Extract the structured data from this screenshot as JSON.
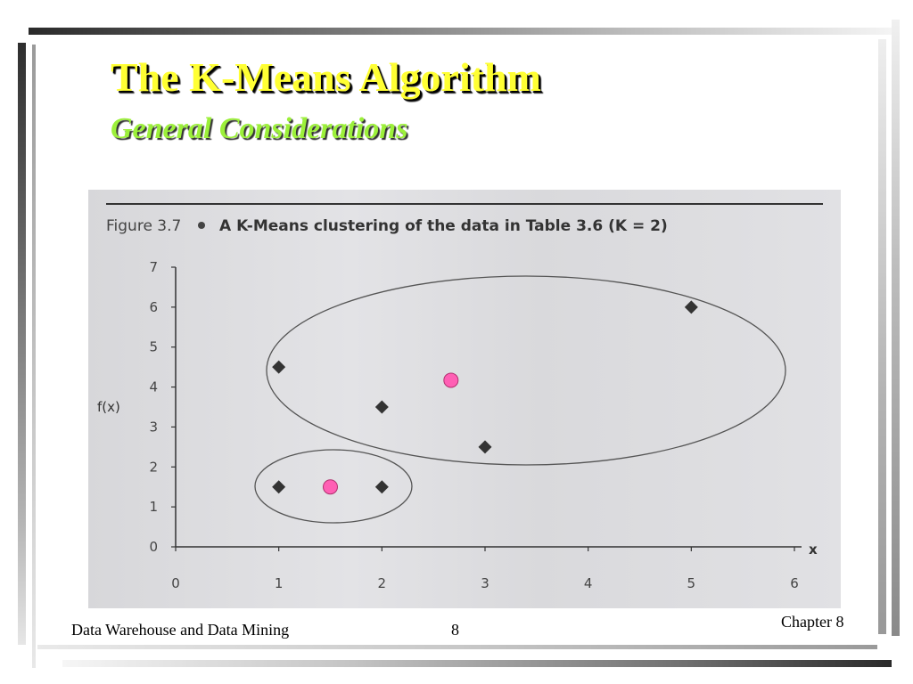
{
  "slide": {
    "title": "The K-Means Algorithm",
    "subtitle": "General Considerations",
    "footer_left": "Data Warehouse and Data Mining",
    "page_number": "8",
    "footer_right": "Chapter 8"
  },
  "colors": {
    "title": "#ffff33",
    "subtitle": "#9cf03a",
    "figure_background": "#dcdcdf",
    "data_point": "#333333",
    "centroid": "#ff5fb4"
  },
  "chart_data": {
    "type": "scatter",
    "figure_label": "Figure 3.7",
    "title": "A K-Means clustering of the data in Table 3.6 (K = 2)",
    "xlabel": "x",
    "ylabel": "f(x)",
    "xlim": [
      0,
      6
    ],
    "ylim": [
      0,
      7
    ],
    "x_ticks": [
      "0",
      "1",
      "2",
      "3",
      "4",
      "5",
      "6"
    ],
    "y_ticks": [
      "0",
      "1",
      "2",
      "3",
      "4",
      "5",
      "6",
      "7"
    ],
    "grid": false,
    "legend": "none",
    "points": [
      {
        "x": 1.0,
        "y": 1.5
      },
      {
        "x": 2.0,
        "y": 1.5
      },
      {
        "x": 1.0,
        "y": 4.5
      },
      {
        "x": 2.0,
        "y": 3.5
      },
      {
        "x": 3.0,
        "y": 2.5
      },
      {
        "x": 5.0,
        "y": 6.0
      }
    ],
    "centroids": [
      {
        "x": 1.5,
        "y": 1.5
      },
      {
        "x": 2.67,
        "y": 4.17
      }
    ]
  }
}
